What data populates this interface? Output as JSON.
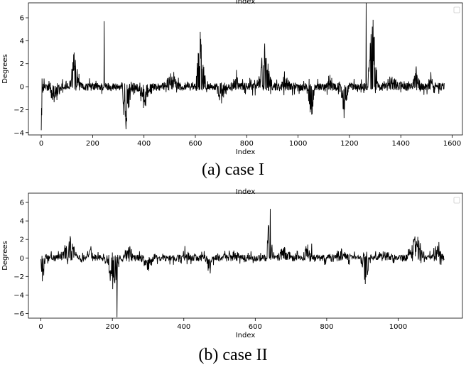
{
  "chart_data": [
    {
      "type": "line",
      "caption": "(a) case I",
      "top_title": "Index",
      "xlabel": "Index",
      "ylabel": "Degrees",
      "xlim": [
        -50,
        1640
      ],
      "ylim": [
        -4.2,
        7.3
      ],
      "xticks": [
        0,
        200,
        400,
        600,
        800,
        1000,
        1200,
        1400,
        1600
      ],
      "yticks": [
        -4,
        -2,
        0,
        2,
        4,
        6
      ],
      "legend": "top-right",
      "color": "#000000",
      "n_points": 1570,
      "events": [
        {
          "x": 0,
          "width": 15,
          "amp": -4.0
        },
        {
          "x": 50,
          "width": 60,
          "amp": -1.5
        },
        {
          "x": 130,
          "width": 40,
          "amp": 3.3
        },
        {
          "x": 245,
          "width": 1,
          "amp": 5.7
        },
        {
          "x": 330,
          "width": 40,
          "amp": -4.1
        },
        {
          "x": 400,
          "width": 60,
          "amp": -1.8
        },
        {
          "x": 510,
          "width": 80,
          "amp": 1.2
        },
        {
          "x": 620,
          "width": 40,
          "amp": 5.8
        },
        {
          "x": 700,
          "width": 40,
          "amp": -1.6
        },
        {
          "x": 760,
          "width": 30,
          "amp": 1.3
        },
        {
          "x": 870,
          "width": 60,
          "amp": 3.6
        },
        {
          "x": 950,
          "width": 40,
          "amp": 1.0
        },
        {
          "x": 1050,
          "width": 30,
          "amp": -3.5
        },
        {
          "x": 1120,
          "width": 30,
          "amp": 0.8
        },
        {
          "x": 1180,
          "width": 30,
          "amp": -3.5
        },
        {
          "x": 1265,
          "width": 1,
          "amp": 7.3
        },
        {
          "x": 1290,
          "width": 40,
          "amp": 6.8
        },
        {
          "x": 1370,
          "width": 80,
          "amp": 0.9
        },
        {
          "x": 1460,
          "width": 30,
          "amp": 1.9
        },
        {
          "x": 1520,
          "width": 50,
          "amp": 0.8
        }
      ],
      "noise": 0.35
    },
    {
      "type": "line",
      "caption": "(b) case II",
      "top_title": "Index",
      "xlabel": "Index",
      "ylabel": "Degrees",
      "xlim": [
        -35,
        1180
      ],
      "ylim": [
        -6.5,
        7.0
      ],
      "xticks": [
        0,
        200,
        400,
        600,
        800,
        1000
      ],
      "yticks": [
        -6,
        -4,
        -2,
        0,
        2,
        4,
        6
      ],
      "legend": "top-right",
      "color": "#000000",
      "n_points": 1130,
      "events": [
        {
          "x": 5,
          "width": 15,
          "amp": -3.0
        },
        {
          "x": 80,
          "width": 60,
          "amp": 2.4
        },
        {
          "x": 140,
          "width": 30,
          "amp": 1.2
        },
        {
          "x": 200,
          "width": 40,
          "amp": -4.0
        },
        {
          "x": 213,
          "width": 1,
          "amp": -6.4
        },
        {
          "x": 245,
          "width": 30,
          "amp": 1.5
        },
        {
          "x": 300,
          "width": 40,
          "amp": -1.2
        },
        {
          "x": 405,
          "width": 20,
          "amp": 2.3
        },
        {
          "x": 470,
          "width": 30,
          "amp": -2.0
        },
        {
          "x": 540,
          "width": 60,
          "amp": 0.8
        },
        {
          "x": 640,
          "width": 15,
          "amp": 6.9
        },
        {
          "x": 680,
          "width": 40,
          "amp": 1.2
        },
        {
          "x": 750,
          "width": 40,
          "amp": 1.8
        },
        {
          "x": 840,
          "width": 40,
          "amp": 1.2
        },
        {
          "x": 910,
          "width": 30,
          "amp": -3.6
        },
        {
          "x": 960,
          "width": 40,
          "amp": 1.0
        },
        {
          "x": 1050,
          "width": 50,
          "amp": 3.1
        },
        {
          "x": 1110,
          "width": 30,
          "amp": 2.0
        }
      ],
      "noise": 0.35
    }
  ]
}
